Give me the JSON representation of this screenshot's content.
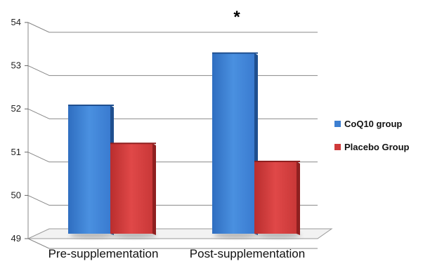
{
  "chart_data": {
    "type": "bar",
    "categories": [
      "Pre-supplementation",
      "Post-supplementation"
    ],
    "series": [
      {
        "name": "CoQ10 group",
        "values": [
          52.2,
          53.5
        ],
        "color": "#3d7fd1"
      },
      {
        "name": "Placebo Group",
        "values": [
          51.25,
          50.8
        ],
        "color": "#cf3a3a"
      }
    ],
    "ylim": [
      49,
      54
    ],
    "yticks": [
      49,
      50,
      51,
      52,
      53,
      54
    ],
    "grid": true,
    "legend": "right",
    "style": "3d-bar",
    "annotations": [
      {
        "text": "*",
        "category": "Post-supplementation"
      }
    ]
  }
}
